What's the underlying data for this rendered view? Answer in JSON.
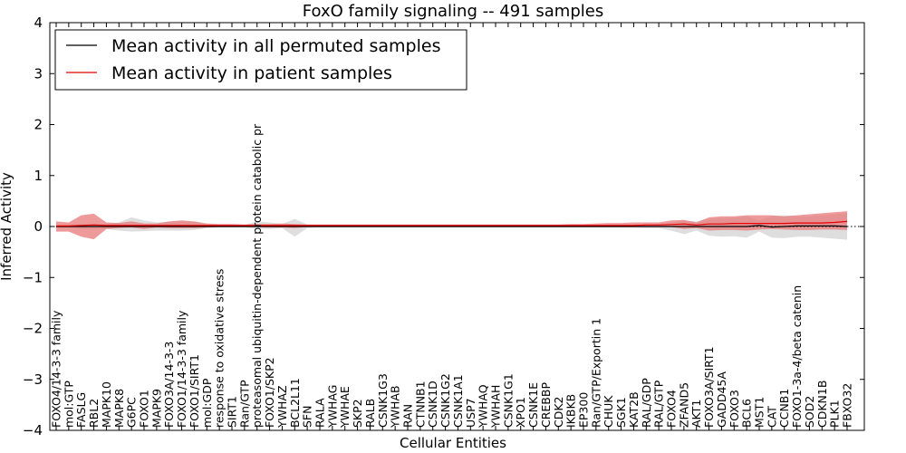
{
  "chart_data": {
    "type": "line",
    "title": "FoxO family signaling -- 491 samples",
    "xlabel": "Cellular Entities",
    "ylabel": "Inferred Activity",
    "ylim": [
      -4,
      4
    ],
    "yticks": [
      "4",
      "3",
      "2",
      "1",
      "0",
      "−1",
      "−2",
      "−3",
      "−4"
    ],
    "grid": false,
    "legend_position": "top-left",
    "colors": {
      "permuted": "#000000",
      "patient": "#e00000",
      "patient_band": "#e8787a",
      "permuted_band": "#c8c8c8"
    },
    "categories": [
      "FOXO4/14-3-3 family",
      "mol:GTP",
      "FASLG",
      "RBL2",
      "MAPK10",
      "MAPK8",
      "G6PC",
      "FOXO1",
      "MAPK9",
      "FOXO3A/14-3-3",
      "FOXO1/14-3-3 family",
      "FOXO1/SIRT1",
      "mol:GDP",
      "response to oxidative stress",
      "SIRT1",
      "Ran/GTP",
      "proteasomal ubiquitin-dependent protein catabolic pr",
      "FOXO1/SKP2",
      "YWHAZ",
      "BCL2L11",
      "SFN",
      "RALA",
      "YWHAG",
      "YWHAE",
      "SKP2",
      "RALB",
      "CSNK1G3",
      "YWHAB",
      "RAN",
      "CTNNB1",
      "CSNK1D",
      "CSNK1G2",
      "CSNK1A1",
      "USP7",
      "YWHAQ",
      "YWHAH",
      "CSNK1G1",
      "XPO1",
      "CSNK1E",
      "CREBBP",
      "CDK2",
      "IKBKB",
      "EP300",
      "Ran/GTP/Exportin 1",
      "CHUK",
      "SGK1",
      "KAT2B",
      "RAL/GDP",
      "RAL/GTP",
      "FOXO4",
      "ZFAND5",
      "AKT1",
      "FOXO3A/SIRT1",
      "GADD45A",
      "FOXO3",
      "BCL6",
      "MST1",
      "CAT",
      "CCNB1",
      "FOXO1-3a-4/beta catenin",
      "SOD2",
      "CDKN1B",
      "PLK1",
      "FBXO32"
    ],
    "series": [
      {
        "name": "Mean activity in all permuted samples",
        "values": [
          0,
          0,
          0,
          0,
          0,
          0,
          0,
          0,
          0,
          0,
          0,
          0,
          0,
          0,
          0,
          0,
          0,
          0,
          0,
          0,
          0,
          0,
          0,
          0,
          0,
          0,
          0,
          0,
          0,
          0,
          0,
          0,
          0,
          0,
          0,
          0,
          0,
          0,
          0,
          0,
          0,
          0,
          0,
          0,
          0,
          0,
          0,
          0,
          0,
          0,
          0,
          0,
          0,
          0,
          0,
          0,
          0.02,
          -0.01,
          0,
          0.01,
          0.01,
          0.01,
          0.01,
          0
        ],
        "lower": [
          -0.02,
          -0.03,
          -0.05,
          -0.06,
          -0.05,
          -0.08,
          -0.1,
          -0.09,
          -0.08,
          -0.08,
          -0.08,
          -0.07,
          -0.03,
          -0.02,
          -0.02,
          -0.02,
          -0.05,
          -0.05,
          -0.03,
          -0.2,
          -0.03,
          -0.02,
          -0.02,
          -0.02,
          -0.02,
          -0.02,
          -0.02,
          -0.02,
          -0.02,
          -0.02,
          -0.02,
          -0.02,
          -0.02,
          -0.02,
          -0.02,
          -0.02,
          -0.02,
          -0.02,
          -0.02,
          -0.02,
          -0.02,
          -0.02,
          -0.02,
          -0.02,
          -0.02,
          -0.02,
          -0.02,
          -0.03,
          -0.03,
          -0.08,
          -0.15,
          -0.08,
          -0.18,
          -0.2,
          -0.19,
          -0.22,
          -0.1,
          -0.22,
          -0.23,
          -0.2,
          -0.2,
          -0.22,
          -0.24,
          -0.26
        ],
        "upper": [
          0.02,
          0.03,
          0.05,
          0.06,
          0.05,
          0.08,
          0.18,
          0.12,
          0.08,
          0.09,
          0.1,
          0.09,
          0.04,
          0.03,
          0.03,
          0.03,
          0.1,
          0.08,
          0.05,
          0.15,
          0.04,
          0.03,
          0.03,
          0.03,
          0.03,
          0.03,
          0.03,
          0.03,
          0.03,
          0.03,
          0.03,
          0.03,
          0.03,
          0.03,
          0.03,
          0.03,
          0.03,
          0.03,
          0.03,
          0.03,
          0.03,
          0.03,
          0.03,
          0.03,
          0.03,
          0.03,
          0.03,
          0.04,
          0.05,
          0.08,
          0.12,
          0.1,
          0.15,
          0.16,
          0.17,
          0.2,
          0.12,
          0.2,
          0.22,
          0.2,
          0.2,
          0.22,
          0.24,
          0.26
        ]
      },
      {
        "name": "Mean activity in patient samples",
        "values": [
          0.01,
          0.01,
          0.02,
          0.03,
          0.02,
          0.02,
          0.02,
          0.02,
          0.02,
          0.02,
          0.02,
          0.02,
          0.02,
          0.02,
          0.02,
          0.02,
          0.02,
          0.02,
          0.02,
          0.02,
          0.02,
          0.02,
          0.02,
          0.02,
          0.02,
          0.02,
          0.02,
          0.02,
          0.02,
          0.02,
          0.02,
          0.02,
          0.02,
          0.02,
          0.02,
          0.02,
          0.02,
          0.02,
          0.02,
          0.02,
          0.02,
          0.02,
          0.02,
          0.02,
          0.02,
          0.02,
          0.02,
          0.03,
          0.03,
          0.04,
          0.05,
          0.03,
          0.05,
          0.05,
          0.06,
          0.06,
          0.06,
          0.06,
          0.06,
          0.07,
          0.07,
          0.07,
          0.08,
          0.1
        ],
        "lower": [
          -0.1,
          -0.1,
          -0.2,
          -0.25,
          -0.05,
          -0.03,
          -0.02,
          -0.05,
          -0.02,
          -0.03,
          -0.03,
          -0.03,
          -0.02,
          -0.01,
          -0.01,
          -0.01,
          -0.01,
          -0.02,
          -0.02,
          -0.03,
          -0.01,
          -0.01,
          -0.01,
          -0.01,
          -0.01,
          -0.01,
          -0.01,
          -0.01,
          -0.01,
          -0.01,
          -0.01,
          -0.01,
          -0.01,
          -0.01,
          -0.01,
          -0.01,
          -0.01,
          -0.01,
          -0.01,
          -0.01,
          -0.01,
          -0.01,
          -0.01,
          -0.01,
          -0.01,
          -0.01,
          -0.01,
          -0.01,
          -0.01,
          -0.01,
          -0.05,
          -0.03,
          -0.08,
          -0.07,
          -0.07,
          -0.08,
          -0.06,
          -0.05,
          -0.06,
          -0.07,
          -0.07,
          -0.06,
          -0.06,
          -0.07
        ],
        "upper": [
          0.1,
          0.08,
          0.22,
          0.25,
          0.08,
          0.07,
          0.1,
          0.06,
          0.06,
          0.1,
          0.12,
          0.1,
          0.06,
          0.05,
          0.05,
          0.04,
          0.05,
          0.05,
          0.06,
          0.05,
          0.04,
          0.04,
          0.04,
          0.04,
          0.04,
          0.04,
          0.04,
          0.04,
          0.04,
          0.04,
          0.04,
          0.04,
          0.04,
          0.04,
          0.04,
          0.04,
          0.04,
          0.04,
          0.04,
          0.04,
          0.04,
          0.05,
          0.05,
          0.06,
          0.07,
          0.07,
          0.08,
          0.08,
          0.08,
          0.12,
          0.13,
          0.08,
          0.18,
          0.2,
          0.2,
          0.22,
          0.22,
          0.22,
          0.2,
          0.22,
          0.24,
          0.26,
          0.28,
          0.3
        ]
      }
    ]
  }
}
